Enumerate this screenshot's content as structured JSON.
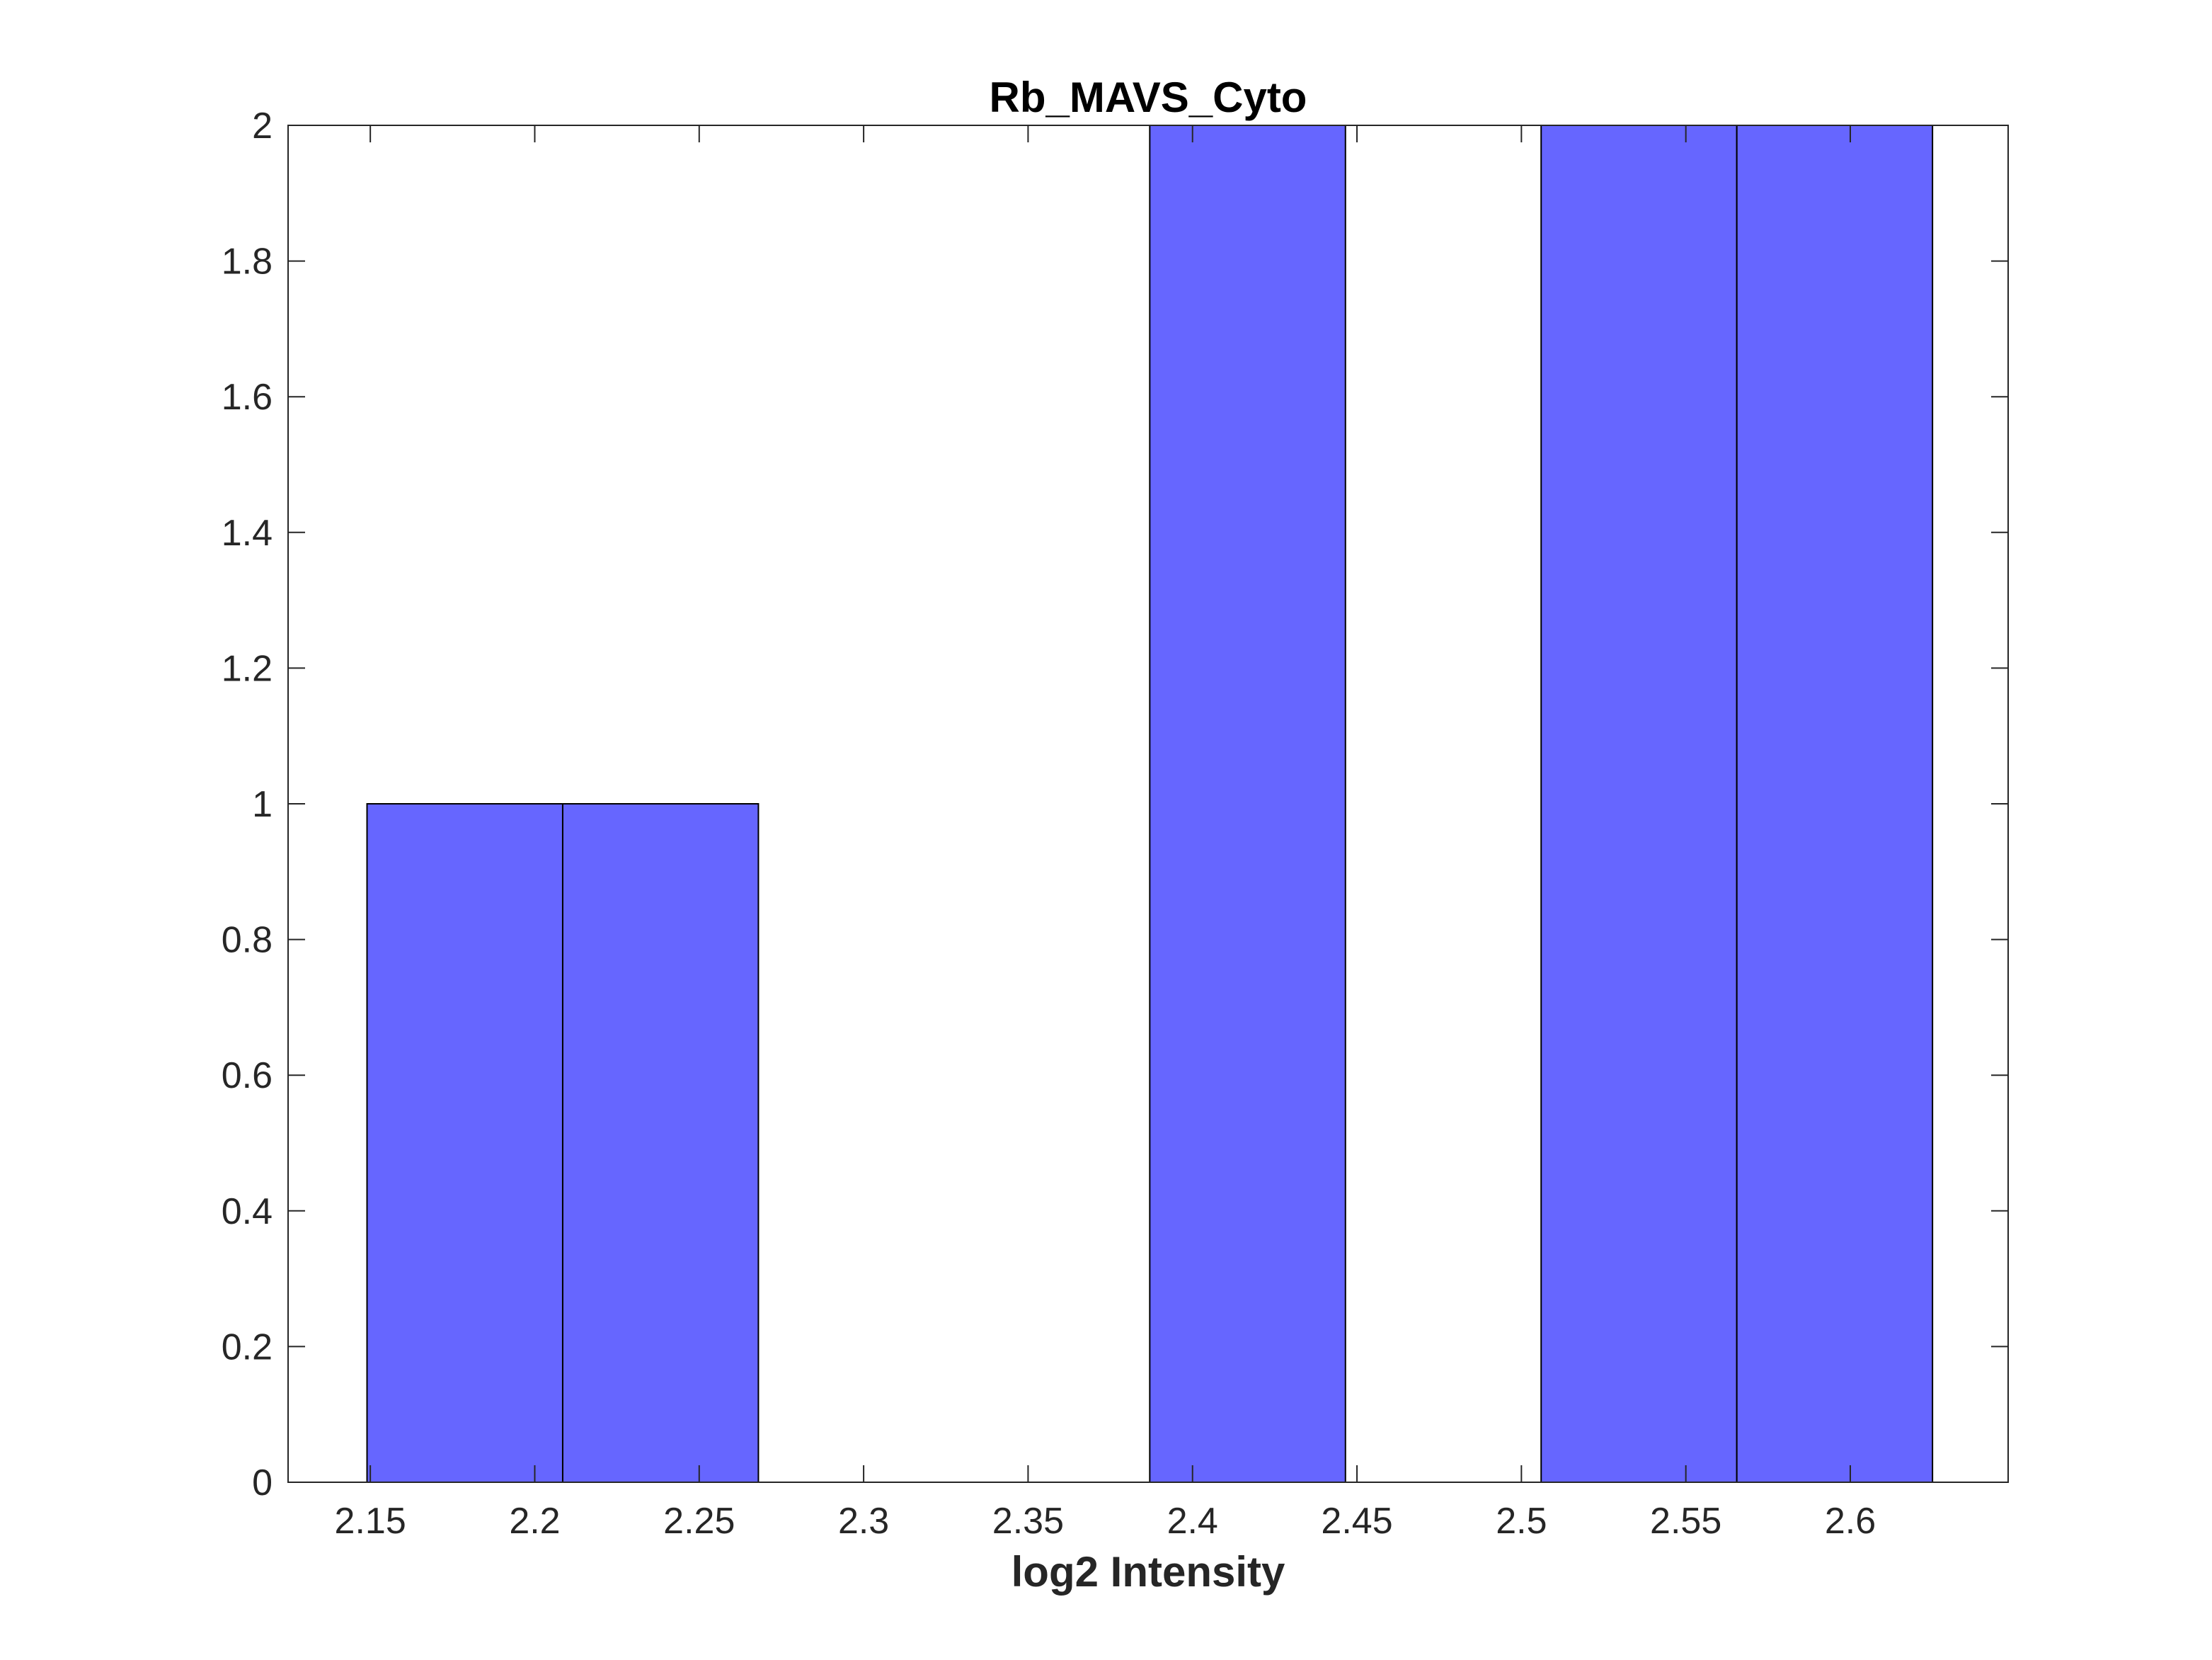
{
  "chart_data": {
    "type": "bar",
    "subtype": "histogram",
    "title": "Rb_MAVS_Cyto",
    "xlabel": "log2 Intensity",
    "ylabel": "",
    "xlim": [
      2.125,
      2.648
    ],
    "ylim": [
      0,
      2
    ],
    "grid": false,
    "legend": "none",
    "x_ticks": [
      2.15,
      2.2,
      2.25,
      2.3,
      2.35,
      2.4,
      2.45,
      2.5,
      2.55,
      2.6
    ],
    "x_tick_labels": [
      "2.15",
      "2.2",
      "2.25",
      "2.3",
      "2.35",
      "2.4",
      "2.45",
      "2.5",
      "2.55",
      "2.6"
    ],
    "y_ticks": [
      0,
      0.2,
      0.4,
      0.6,
      0.8,
      1,
      1.2,
      1.4,
      1.6,
      1.8,
      2
    ],
    "y_tick_labels": [
      "0",
      "0.2",
      "0.4",
      "0.6",
      "0.8",
      "1",
      "1.2",
      "1.4",
      "1.6",
      "1.8",
      "2"
    ],
    "bin_edges": [
      2.149,
      2.2085,
      2.268,
      2.3275,
      2.387,
      2.4465,
      2.506,
      2.5655,
      2.625
    ],
    "counts": [
      1,
      1,
      0,
      0,
      2,
      0,
      2,
      2
    ],
    "colors": {
      "bar_fill": "#6666ff",
      "bar_edge": "#000000",
      "axes": "#262626"
    }
  }
}
